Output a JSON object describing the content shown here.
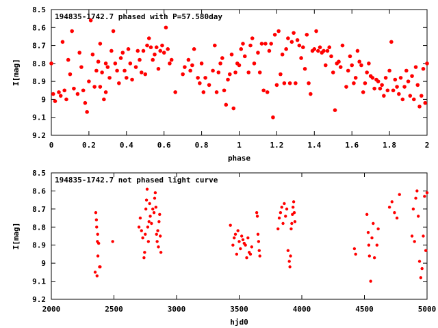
{
  "chart_data": [
    {
      "type": "scatter",
      "title": "194835-1742.7 phased with P=57.580day",
      "xlabel": "phase",
      "ylabel": "I[mag]",
      "xlim": [
        0,
        2
      ],
      "ylim": [
        8.5,
        9.2
      ],
      "y_inverted": true,
      "grid": false,
      "marker_color": "#ff0000",
      "xticks": [
        "0",
        "0.2",
        "0.4",
        "0.6",
        "0.8",
        "1",
        "1.2",
        "1.4",
        "1.6",
        "1.8",
        "2"
      ],
      "xtick_values": [
        0,
        0.2,
        0.4,
        0.6,
        0.8,
        1.0,
        1.2,
        1.4,
        1.6,
        1.8,
        2.0
      ],
      "yticks": [
        "8.5",
        "8.6",
        "8.7",
        "8.8",
        "8.9",
        "9",
        "9.1",
        "9.2"
      ],
      "ytick_values": [
        8.5,
        8.6,
        8.7,
        8.8,
        8.9,
        9.0,
        9.1,
        9.2
      ],
      "points": [
        [
          0.0,
          8.8
        ],
        [
          0.01,
          8.97
        ],
        [
          0.02,
          9.01
        ],
        [
          0.04,
          8.96
        ],
        [
          0.05,
          8.98
        ],
        [
          0.06,
          8.68
        ],
        [
          0.07,
          8.95
        ],
        [
          0.08,
          9.0
        ],
        [
          0.09,
          8.78
        ],
        [
          0.1,
          8.86
        ],
        [
          0.11,
          8.62
        ],
        [
          0.12,
          8.94
        ],
        [
          0.14,
          8.97
        ],
        [
          0.15,
          8.74
        ],
        [
          0.16,
          8.82
        ],
        [
          0.17,
          8.95
        ],
        [
          0.18,
          9.02
        ],
        [
          0.19,
          9.07
        ],
        [
          0.2,
          8.9
        ],
        [
          0.21,
          8.56
        ],
        [
          0.22,
          8.75
        ],
        [
          0.23,
          8.93
        ],
        [
          0.24,
          8.84
        ],
        [
          0.25,
          8.79
        ],
        [
          0.26,
          8.93
        ],
        [
          0.26,
          8.69
        ],
        [
          0.27,
          8.85
        ],
        [
          0.28,
          9.0
        ],
        [
          0.29,
          8.8
        ],
        [
          0.29,
          8.96
        ],
        [
          0.3,
          8.82
        ],
        [
          0.31,
          8.88
        ],
        [
          0.32,
          8.73
        ],
        [
          0.33,
          8.62
        ],
        [
          0.34,
          8.8
        ],
        [
          0.35,
          8.84
        ],
        [
          0.36,
          8.91
        ],
        [
          0.37,
          8.77
        ],
        [
          0.38,
          8.74
        ],
        [
          0.39,
          8.84
        ],
        [
          0.4,
          8.88
        ],
        [
          0.41,
          8.72
        ],
        [
          0.42,
          8.8
        ],
        [
          0.43,
          8.89
        ],
        [
          0.45,
          8.82
        ],
        [
          0.46,
          8.73
        ],
        [
          0.47,
          8.78
        ],
        [
          0.48,
          8.85
        ],
        [
          0.49,
          8.73
        ],
        [
          0.5,
          8.86
        ],
        [
          0.51,
          8.7
        ],
        [
          0.52,
          8.66
        ],
        [
          0.53,
          8.71
        ],
        [
          0.54,
          8.78
        ],
        [
          0.55,
          8.75
        ],
        [
          0.56,
          8.71
        ],
        [
          0.57,
          8.83
        ],
        [
          0.58,
          8.73
        ],
        [
          0.59,
          8.7
        ],
        [
          0.6,
          8.74
        ],
        [
          0.61,
          8.6
        ],
        [
          0.62,
          8.72
        ],
        [
          0.63,
          8.8
        ],
        [
          0.64,
          8.78
        ],
        [
          0.66,
          8.96
        ],
        [
          0.7,
          8.86
        ],
        [
          0.71,
          8.82
        ],
        [
          0.73,
          8.78
        ],
        [
          0.74,
          8.84
        ],
        [
          0.75,
          8.81
        ],
        [
          0.76,
          8.72
        ],
        [
          0.78,
          8.88
        ],
        [
          0.79,
          8.91
        ],
        [
          0.8,
          8.8
        ],
        [
          0.81,
          8.96
        ],
        [
          0.82,
          8.88
        ],
        [
          0.84,
          8.92
        ],
        [
          0.86,
          8.84
        ],
        [
          0.87,
          8.7
        ],
        [
          0.88,
          8.96
        ],
        [
          0.89,
          8.85
        ],
        [
          0.9,
          8.8
        ],
        [
          0.91,
          8.77
        ],
        [
          0.92,
          8.95
        ],
        [
          0.93,
          9.03
        ],
        [
          0.94,
          8.89
        ],
        [
          0.95,
          8.86
        ],
        [
          0.96,
          8.75
        ],
        [
          0.97,
          9.05
        ],
        [
          0.98,
          8.85
        ],
        [
          0.99,
          8.8
        ],
        [
          1.0,
          8.81
        ],
        [
          1.01,
          8.72
        ],
        [
          1.02,
          8.69
        ],
        [
          1.03,
          8.76
        ],
        [
          1.05,
          8.85
        ],
        [
          1.06,
          8.7
        ],
        [
          1.07,
          8.66
        ],
        [
          1.08,
          8.8
        ],
        [
          1.1,
          8.74
        ],
        [
          1.11,
          8.85
        ],
        [
          1.12,
          8.69
        ],
        [
          1.13,
          8.95
        ],
        [
          1.14,
          8.69
        ],
        [
          1.15,
          8.96
        ],
        [
          1.16,
          8.73
        ],
        [
          1.17,
          8.69
        ],
        [
          1.18,
          9.1
        ],
        [
          1.19,
          8.64
        ],
        [
          1.2,
          8.92
        ],
        [
          1.21,
          8.62
        ],
        [
          1.22,
          8.86
        ],
        [
          1.23,
          8.75
        ],
        [
          1.24,
          8.91
        ],
        [
          1.25,
          8.72
        ],
        [
          1.26,
          8.66
        ],
        [
          1.27,
          8.91
        ],
        [
          1.28,
          8.68
        ],
        [
          1.29,
          8.63
        ],
        [
          1.3,
          8.91
        ],
        [
          1.31,
          8.67
        ],
        [
          1.32,
          8.7
        ],
        [
          1.33,
          8.77
        ],
        [
          1.34,
          8.71
        ],
        [
          1.35,
          8.83
        ],
        [
          1.36,
          8.64
        ],
        [
          1.37,
          8.91
        ],
        [
          1.38,
          8.97
        ],
        [
          1.39,
          8.73
        ],
        [
          1.4,
          8.72
        ],
        [
          1.41,
          8.62
        ],
        [
          1.42,
          8.73
        ],
        [
          1.43,
          8.71
        ],
        [
          1.44,
          8.74
        ],
        [
          1.45,
          8.73
        ],
        [
          1.46,
          8.81
        ],
        [
          1.47,
          8.73
        ],
        [
          1.48,
          8.71
        ],
        [
          1.49,
          8.76
        ],
        [
          1.5,
          8.85
        ],
        [
          1.51,
          9.06
        ],
        [
          1.52,
          8.8
        ],
        [
          1.53,
          8.79
        ],
        [
          1.54,
          8.82
        ],
        [
          1.55,
          8.7
        ],
        [
          1.57,
          8.93
        ],
        [
          1.58,
          8.84
        ],
        [
          1.59,
          8.76
        ],
        [
          1.6,
          8.81
        ],
        [
          1.61,
          8.91
        ],
        [
          1.62,
          8.88
        ],
        [
          1.63,
          8.73
        ],
        [
          1.64,
          8.79
        ],
        [
          1.65,
          8.81
        ],
        [
          1.66,
          8.96
        ],
        [
          1.67,
          8.91
        ],
        [
          1.68,
          8.85
        ],
        [
          1.69,
          8.8
        ],
        [
          1.7,
          8.87
        ],
        [
          1.71,
          8.88
        ],
        [
          1.72,
          8.94
        ],
        [
          1.73,
          8.89
        ],
        [
          1.74,
          8.9
        ],
        [
          1.75,
          8.94
        ],
        [
          1.76,
          8.92
        ],
        [
          1.77,
          8.98
        ],
        [
          1.78,
          8.88
        ],
        [
          1.79,
          8.95
        ],
        [
          1.8,
          8.84
        ],
        [
          1.81,
          8.68
        ],
        [
          1.82,
          8.95
        ],
        [
          1.83,
          8.89
        ],
        [
          1.84,
          8.93
        ],
        [
          1.85,
          8.97
        ],
        [
          1.86,
          8.88
        ],
        [
          1.87,
          9.0
        ],
        [
          1.88,
          8.93
        ],
        [
          1.89,
          8.84
        ],
        [
          1.9,
          8.9
        ],
        [
          1.91,
          8.98
        ],
        [
          1.92,
          8.87
        ],
        [
          1.93,
          9.0
        ],
        [
          1.94,
          8.82
        ],
        [
          1.95,
          8.92
        ],
        [
          1.96,
          9.04
        ],
        [
          1.97,
          8.98
        ],
        [
          1.98,
          8.83
        ],
        [
          1.99,
          9.02
        ],
        [
          2.0,
          8.8
        ]
      ]
    },
    {
      "type": "scatter",
      "title": "194835-1742.7 not phased light curve",
      "xlabel": "hjd0",
      "ylabel": "I[mag]",
      "xlim": [
        2000,
        5000
      ],
      "ylim": [
        8.5,
        9.2
      ],
      "y_inverted": true,
      "grid": false,
      "marker_color": "#ff0000",
      "xticks": [
        "2000",
        "2500",
        "3000",
        "3500",
        "4000",
        "4500",
        "5000"
      ],
      "xtick_values": [
        2000,
        2500,
        3000,
        3500,
        4000,
        4500,
        5000
      ],
      "yticks": [
        "8.5",
        "8.6",
        "8.7",
        "8.8",
        "8.9",
        "9",
        "9.1",
        "9.2"
      ],
      "ytick_values": [
        8.5,
        8.6,
        8.7,
        8.8,
        8.9,
        9.0,
        9.1,
        9.2
      ],
      "points": [
        [
          2350,
          9.05
        ],
        [
          2355,
          8.72
        ],
        [
          2360,
          8.76
        ],
        [
          2362,
          8.8
        ],
        [
          2365,
          9.07
        ],
        [
          2368,
          8.88
        ],
        [
          2370,
          8.84
        ],
        [
          2372,
          8.96
        ],
        [
          2378,
          8.89
        ],
        [
          2385,
          9.02
        ],
        [
          2390,
          9.02
        ],
        [
          2490,
          8.88
        ],
        [
          2700,
          8.8
        ],
        [
          2710,
          8.75
        ],
        [
          2720,
          8.82
        ],
        [
          2730,
          8.86
        ],
        [
          2740,
          8.97
        ],
        [
          2745,
          8.94
        ],
        [
          2750,
          8.84
        ],
        [
          2755,
          8.7
        ],
        [
          2760,
          8.65
        ],
        [
          2765,
          8.59
        ],
        [
          2770,
          8.8
        ],
        [
          2775,
          8.88
        ],
        [
          2780,
          8.77
        ],
        [
          2785,
          8.67
        ],
        [
          2790,
          8.74
        ],
        [
          2800,
          8.78
        ],
        [
          2810,
          8.7
        ],
        [
          2820,
          8.72
        ],
        [
          2825,
          8.64
        ],
        [
          2830,
          8.61
        ],
        [
          2835,
          8.69
        ],
        [
          2840,
          8.84
        ],
        [
          2845,
          8.88
        ],
        [
          2850,
          8.82
        ],
        [
          2855,
          8.91
        ],
        [
          2860,
          8.77
        ],
        [
          2865,
          8.73
        ],
        [
          2870,
          8.85
        ],
        [
          2875,
          8.94
        ],
        [
          3430,
          8.79
        ],
        [
          3450,
          8.9
        ],
        [
          3460,
          8.86
        ],
        [
          3470,
          8.84
        ],
        [
          3480,
          8.95
        ],
        [
          3490,
          8.82
        ],
        [
          3500,
          8.88
        ],
        [
          3510,
          8.92
        ],
        [
          3520,
          8.85
        ],
        [
          3530,
          8.87
        ],
        [
          3540,
          8.89
        ],
        [
          3550,
          8.9
        ],
        [
          3560,
          8.97
        ],
        [
          3570,
          8.86
        ],
        [
          3580,
          8.94
        ],
        [
          3590,
          8.95
        ],
        [
          3600,
          8.91
        ],
        [
          3640,
          8.72
        ],
        [
          3645,
          8.74
        ],
        [
          3650,
          8.84
        ],
        [
          3655,
          8.88
        ],
        [
          3660,
          8.93
        ],
        [
          3665,
          8.96
        ],
        [
          3810,
          8.81
        ],
        [
          3820,
          8.75
        ],
        [
          3830,
          8.72
        ],
        [
          3840,
          8.69
        ],
        [
          3850,
          8.78
        ],
        [
          3860,
          8.67
        ],
        [
          3870,
          8.74
        ],
        [
          3880,
          8.7
        ],
        [
          3890,
          8.93
        ],
        [
          3900,
          8.99
        ],
        [
          3905,
          9.02
        ],
        [
          3910,
          8.96
        ],
        [
          3915,
          8.81
        ],
        [
          3920,
          8.78
        ],
        [
          3925,
          8.73
        ],
        [
          3930,
          8.69
        ],
        [
          3935,
          8.66
        ],
        [
          3940,
          8.72
        ],
        [
          3945,
          8.77
        ],
        [
          4420,
          8.92
        ],
        [
          4430,
          8.95
        ],
        [
          4520,
          8.73
        ],
        [
          4530,
          8.83
        ],
        [
          4535,
          8.9
        ],
        [
          4540,
          8.96
        ],
        [
          4550,
          9.1
        ],
        [
          4560,
          8.86
        ],
        [
          4570,
          8.78
        ],
        [
          4580,
          8.97
        ],
        [
          4600,
          8.9
        ],
        [
          4610,
          8.81
        ],
        [
          4700,
          8.69
        ],
        [
          4720,
          8.66
        ],
        [
          4740,
          8.72
        ],
        [
          4760,
          8.75
        ],
        [
          4780,
          8.62
        ],
        [
          4880,
          8.85
        ],
        [
          4890,
          8.7
        ],
        [
          4900,
          8.88
        ],
        [
          4910,
          8.64
        ],
        [
          4920,
          8.6
        ],
        [
          4930,
          8.74
        ],
        [
          4940,
          8.99
        ],
        [
          4950,
          9.08
        ],
        [
          4960,
          9.03
        ],
        [
          4970,
          8.85
        ],
        [
          4980,
          8.63
        ],
        [
          4990,
          8.93
        ],
        [
          5000,
          8.61
        ]
      ]
    }
  ]
}
